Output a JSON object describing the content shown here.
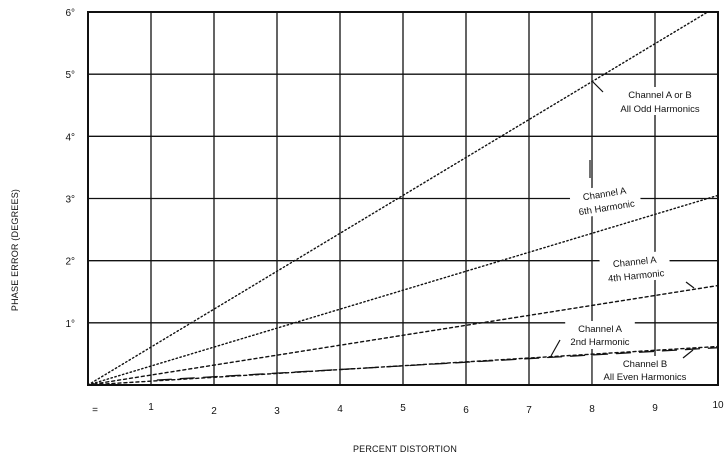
{
  "chart_data": {
    "type": "line",
    "title": "",
    "xlabel": "PERCENT DISTORTION",
    "ylabel": "PHASE ERROR (DEGREES)",
    "xlim": [
      0,
      10
    ],
    "ylim": [
      0,
      6
    ],
    "grid": true,
    "x_ticks": [
      "1",
      "2",
      "3",
      "4",
      "5",
      "6",
      "7",
      "8",
      "9",
      "10"
    ],
    "x_origin_label": "=",
    "y_ticks": [
      "1°",
      "2°",
      "3°",
      "4°",
      "5°",
      "6°"
    ],
    "series": [
      {
        "name": "Channel A or B All Odd Harmonics",
        "style": "dotted",
        "points": [
          [
            0,
            0
          ],
          [
            10,
            6.1
          ]
        ]
      },
      {
        "name": "Channel A 6th Harmonic",
        "style": "dotted",
        "points": [
          [
            0,
            0
          ],
          [
            10,
            3.05
          ]
        ]
      },
      {
        "name": "Channel A 4th Harmonic",
        "style": "dashed-short",
        "points": [
          [
            0,
            0
          ],
          [
            10,
            1.6
          ]
        ]
      },
      {
        "name": "Channel A 2nd Harmonic",
        "style": "dashed-short",
        "points": [
          [
            0,
            0
          ],
          [
            10,
            0.62
          ]
        ]
      },
      {
        "name": "Channel B All Even Harmonics",
        "style": "dashed-long",
        "points": [
          [
            0,
            0
          ],
          [
            10,
            0.62
          ]
        ]
      }
    ],
    "annotations": [
      {
        "id": "odd",
        "lines": [
          "Channel A or B",
          "All Odd Harmonics"
        ]
      },
      {
        "id": "sixth",
        "lines": [
          "Channel A",
          "6th Harmonic"
        ]
      },
      {
        "id": "fourth",
        "lines": [
          "Channel A",
          "4th Harmonic"
        ]
      },
      {
        "id": "second",
        "lines": [
          "Channel A",
          "2nd Harmonic"
        ]
      },
      {
        "id": "even",
        "lines": [
          "Channel B",
          "All Even Harmonics"
        ]
      }
    ],
    "colors": {
      "line": "#111111",
      "grid": "#111111",
      "background": "#ffffff"
    }
  }
}
